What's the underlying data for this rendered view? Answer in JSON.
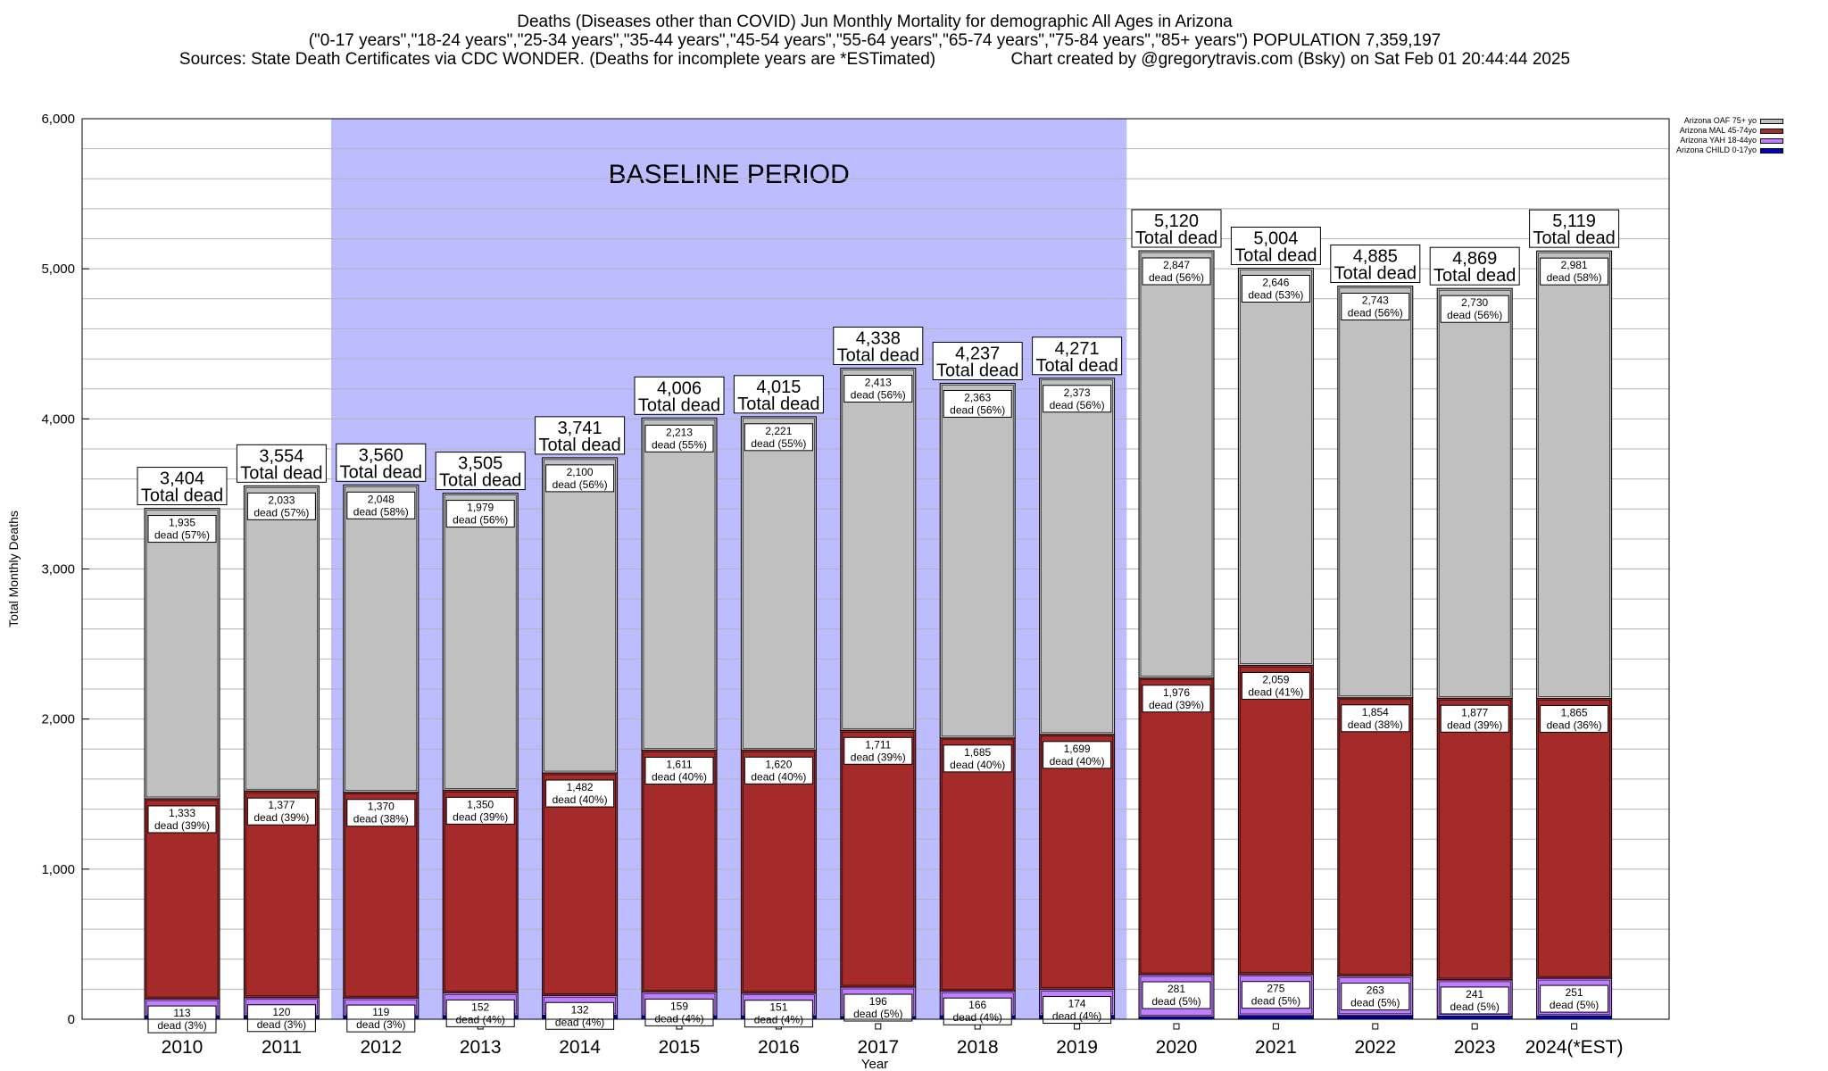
{
  "titles": {
    "line1": "Deaths (Diseases other than COVID) Jun Monthly Mortality for demographic All Ages in Arizona",
    "line2": "(\"0-17 years\",\"18-24 years\",\"25-34 years\",\"35-44 years\",\"45-54 years\",\"55-64 years\",\"65-74 years\",\"75-84 years\",\"85+ years\") POPULATION 7,359,197",
    "line3": "Sources: State Death Certificates via CDC WONDER. (Deaths for incomplete years are *ESTimated)                Chart created by @gregorytravis.com (Bsky) on Sat Feb 01 20:44:44 2025"
  },
  "colors": {
    "baseline": "#bcbcff",
    "oaf": "#c0c0c0",
    "mal": "#a52a2a",
    "yah": "#bf7fff",
    "child": "#0000cc",
    "grid": "#b4b4b4"
  },
  "chart_data": {
    "type": "bar",
    "stacked": true,
    "xlabel": "Year",
    "ylabel": "Total Monthly Deaths",
    "ylim": [
      0,
      6000
    ],
    "yticks": [
      0,
      1000,
      2000,
      3000,
      4000,
      5000,
      6000
    ],
    "ytick_labels": [
      "0",
      "1,000",
      "2,000",
      "3,000",
      "4,000",
      "5,000",
      "6,000"
    ],
    "grid": true,
    "legend_position": "top-right",
    "categories": [
      "2010",
      "2011",
      "2012",
      "2013",
      "2014",
      "2015",
      "2016",
      "2017",
      "2018",
      "2019",
      "2020",
      "2021",
      "2022",
      "2023",
      "2024(*EST)"
    ],
    "shaded_region": {
      "label": "BASELINE PERIOD",
      "from": "2012",
      "to": "2019"
    },
    "totals": [
      3404,
      3554,
      3560,
      3505,
      3741,
      4006,
      4015,
      4338,
      4237,
      4271,
      5120,
      5004,
      4885,
      4869,
      5119
    ],
    "total_labels": [
      "3,404",
      "3,554",
      "3,560",
      "3,505",
      "3,741",
      "4,006",
      "4,015",
      "4,338",
      "4,237",
      "4,271",
      "5,120",
      "5,004",
      "4,885",
      "4,869",
      "5,119"
    ],
    "total_suffix": "Total dead",
    "dead_prefix": "dead",
    "series": [
      {
        "name": "Arizona CHILD 0-17yo",
        "values": [
          23,
          24,
          23,
          24,
          27,
          23,
          23,
          18,
          23,
          25,
          16,
          24,
          25,
          21,
          22
        ],
        "labels": [
          "",
          "",
          "",
          "",
          "",
          "",
          "",
          "",
          "",
          "",
          "",
          "",
          "",
          "",
          ""
        ],
        "pct": [
          "",
          "",
          "",
          "",
          "",
          "",
          "",
          "",
          "",
          "",
          "",
          "",
          "",
          "",
          ""
        ]
      },
      {
        "name": "Arizona YAH 18-44yo",
        "values": [
          113,
          120,
          119,
          152,
          132,
          159,
          151,
          196,
          166,
          174,
          281,
          275,
          263,
          241,
          251
        ],
        "labels": [
          "113",
          "120",
          "119",
          "152",
          "132",
          "159",
          "151",
          "196",
          "166",
          "174",
          "281",
          "275",
          "263",
          "241",
          "251"
        ],
        "pct": [
          "(3%)",
          "(3%)",
          "(3%)",
          "(4%)",
          "(4%)",
          "(4%)",
          "(4%)",
          "(5%)",
          "(4%)",
          "(4%)",
          "(5%)",
          "(5%)",
          "(5%)",
          "(5%)",
          "(5%)"
        ]
      },
      {
        "name": "Arizona MAL 45-74yo",
        "values": [
          1333,
          1377,
          1370,
          1350,
          1482,
          1611,
          1620,
          1711,
          1685,
          1699,
          1976,
          2059,
          1854,
          1877,
          1865
        ],
        "labels": [
          "1,333",
          "1,377",
          "1,370",
          "1,350",
          "1,482",
          "1,611",
          "1,620",
          "1,711",
          "1,685",
          "1,699",
          "1,976",
          "2,059",
          "1,854",
          "1,877",
          "1,865"
        ],
        "pct": [
          "(39%)",
          "(39%)",
          "(38%)",
          "(39%)",
          "(40%)",
          "(40%)",
          "(40%)",
          "(39%)",
          "(40%)",
          "(40%)",
          "(39%)",
          "(41%)",
          "(38%)",
          "(39%)",
          "(36%)"
        ]
      },
      {
        "name": "Arizona OAF 75+ yo",
        "values": [
          1935,
          2033,
          2048,
          1979,
          2100,
          2213,
          2221,
          2413,
          2363,
          2373,
          2847,
          2646,
          2743,
          2730,
          2981
        ],
        "labels": [
          "1,935",
          "2,033",
          "2,048",
          "1,979",
          "2,100",
          "2,213",
          "2,221",
          "2,413",
          "2,363",
          "2,373",
          "2,847",
          "2,646",
          "2,743",
          "2,730",
          "2,981"
        ],
        "pct": [
          "(57%)",
          "(57%)",
          "(58%)",
          "(56%)",
          "(56%)",
          "(55%)",
          "(55%)",
          "(56%)",
          "(56%)",
          "(56%)",
          "(56%)",
          "(53%)",
          "(56%)",
          "(56%)",
          "(58%)"
        ]
      }
    ],
    "legend": [
      "Arizona OAF 75+ yo",
      "Arizona MAL 45-74yo",
      "Arizona YAH 18-44yo",
      "Arizona CHILD 0-17yo"
    ]
  }
}
